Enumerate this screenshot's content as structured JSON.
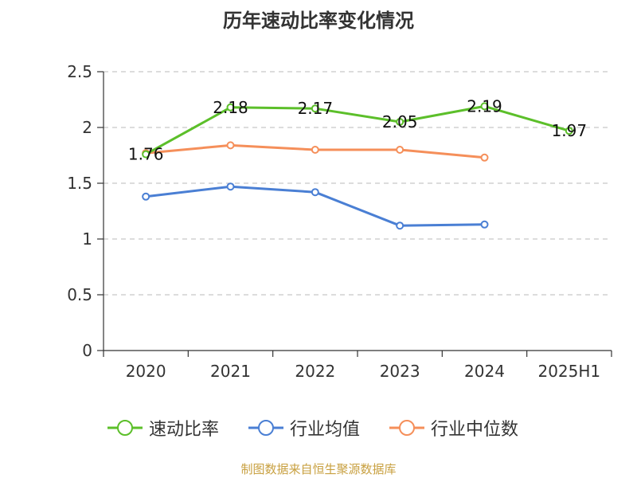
{
  "title": "历年速动比率变化情况",
  "source": "制图数据来自恒生聚源数据库",
  "chart_data": {
    "type": "line",
    "categories": [
      "2020",
      "2021",
      "2022",
      "2023",
      "2024",
      "2025H1"
    ],
    "ylim": [
      0,
      2.5
    ],
    "yticks": [
      "0",
      "0.5",
      "1",
      "1.5",
      "2",
      "2.5"
    ],
    "grid": true,
    "legend_position": "bottom",
    "series": [
      {
        "name": "速动比率",
        "color": "#5cbf2a",
        "values": [
          1.76,
          2.18,
          2.17,
          2.05,
          2.19,
          1.97
        ],
        "labels": [
          "1.76",
          "2.18",
          "2.17",
          "2.05",
          "2.19",
          "1.97"
        ]
      },
      {
        "name": "行业均值",
        "color": "#4a7fd4",
        "values": [
          1.38,
          1.47,
          1.42,
          1.12,
          1.13,
          null
        ]
      },
      {
        "name": "行业中位数",
        "color": "#f58f5a",
        "values": [
          1.77,
          1.84,
          1.8,
          1.8,
          1.73,
          null
        ]
      }
    ]
  }
}
